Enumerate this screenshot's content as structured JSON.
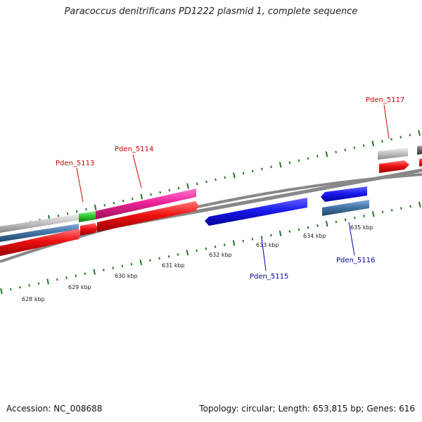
{
  "title": "Paracoccus denitrificans PD1222 plasmid 1, complete sequence",
  "footer": {
    "accession": "Accession: NC_008688",
    "summary": "Topology: circular; Length: 653,815 bp; Genes: 616"
  },
  "scale_labels": [
    "628 kbp",
    "629 kbp",
    "630 kbp",
    "631 kbp",
    "632 kbp",
    "633 kbp",
    "634 kbp",
    "635 kbp"
  ],
  "gene_labels": [
    {
      "name": "Pden_5113",
      "color": "#cc0000"
    },
    {
      "name": "Pden_5114",
      "color": "#cc0000"
    },
    {
      "name": "Pden_5117",
      "color": "#cc0000"
    },
    {
      "name": "Pden_5115",
      "color": "#0000aa"
    },
    {
      "name": "Pden_5116",
      "color": "#0000aa"
    }
  ],
  "colors": {
    "red": "#ee1111",
    "blue": "#1a1aee",
    "pink": "#ee2299",
    "green": "#33cc33",
    "steel": "#4477aa",
    "gray": "#c0c0c0",
    "dark_gray": "#666666",
    "backbone": "#888888",
    "tick": "#227722"
  }
}
